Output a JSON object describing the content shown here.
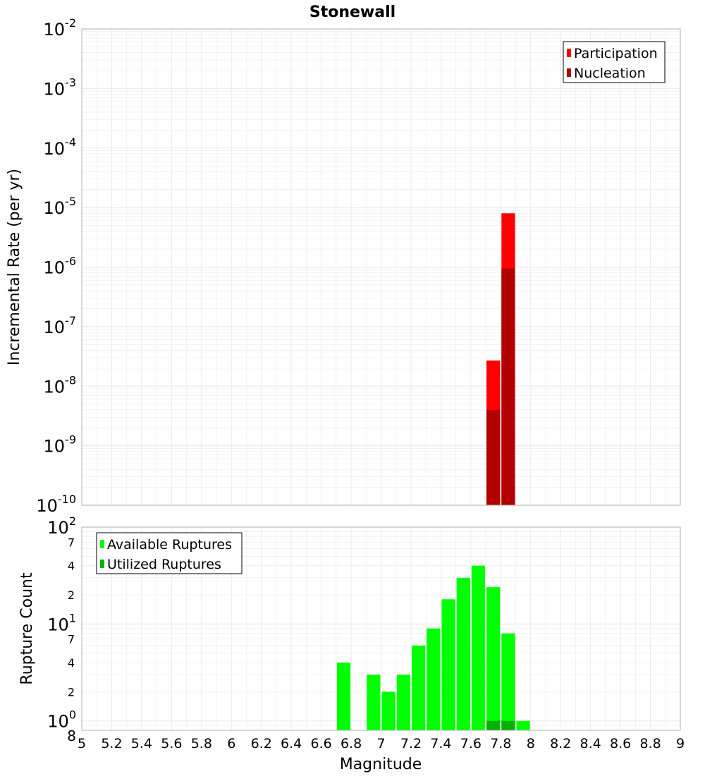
{
  "title": "Stonewall",
  "xlabel": "Magnitude",
  "x_ticks": [
    "5",
    "5.2",
    "5.4",
    "5.6",
    "5.8",
    "6",
    "6.2",
    "6.4",
    "6.6",
    "6.8",
    "7",
    "7.2",
    "7.4",
    "7.6",
    "7.8",
    "8",
    "8.2",
    "8.4",
    "8.6",
    "8.8",
    "9"
  ],
  "colors": {
    "participation": "#ff0000",
    "nucleation": "#b30000",
    "available": "#00ff00",
    "utilized": "#00b300",
    "grid": "#ebebeb",
    "plot_border": "#b3b3b3"
  },
  "chart_data": [
    {
      "type": "bar",
      "ylabel": "Incremental Rate (per yr)",
      "yscale": "log",
      "xlim": [
        5,
        9
      ],
      "ylim": [
        1e-10,
        0.01
      ],
      "y_ticks": [
        {
          "base": "10",
          "exp": "-2"
        },
        {
          "base": "10",
          "exp": "-3"
        },
        {
          "base": "10",
          "exp": "-4"
        },
        {
          "base": "10",
          "exp": "-5"
        },
        {
          "base": "10",
          "exp": "-6"
        },
        {
          "base": "10",
          "exp": "-7"
        },
        {
          "base": "10",
          "exp": "-8"
        },
        {
          "base": "10",
          "exp": "-9"
        },
        {
          "base": "10",
          "exp": "-10"
        }
      ],
      "bar_width": 0.1,
      "grid": true,
      "legend_position": "top-right",
      "series": [
        {
          "name": "Participation",
          "color": "#ff0000",
          "x": [
            7.75,
            7.85
          ],
          "values": [
            2.7e-08,
            8e-06
          ]
        },
        {
          "name": "Nucleation",
          "color": "#b30000",
          "x": [
            7.75,
            7.85
          ],
          "values": [
            4e-09,
            9.5e-07
          ]
        }
      ]
    },
    {
      "type": "bar",
      "ylabel": "Rupture Count",
      "yscale": "log",
      "xlim": [
        5,
        9
      ],
      "ylim": [
        0.8,
        100
      ],
      "y_ticks": [
        {
          "label": "10",
          "exp": "2",
          "major": true
        },
        {
          "label": "7"
        },
        {
          "label": "4"
        },
        {
          "label": "2"
        },
        {
          "label": "10",
          "exp": "1",
          "major": true
        },
        {
          "label": "7"
        },
        {
          "label": "4"
        },
        {
          "label": "2"
        },
        {
          "label": "10",
          "exp": "0",
          "major": true
        },
        {
          "label": "8"
        }
      ],
      "bar_width": 0.1,
      "grid": true,
      "legend_position": "top-left",
      "series": [
        {
          "name": "Available Ruptures",
          "color": "#00ff00",
          "x": [
            6.75,
            6.95,
            7.05,
            7.15,
            7.25,
            7.35,
            7.45,
            7.55,
            7.65,
            7.75,
            7.85,
            7.95
          ],
          "values": [
            4,
            3,
            2,
            3,
            6,
            9,
            18,
            30,
            40,
            24,
            8,
            1
          ]
        },
        {
          "name": "Utilized Ruptures",
          "color": "#00b300",
          "x": [
            7.75,
            7.85
          ],
          "values": [
            1,
            1
          ]
        }
      ]
    }
  ]
}
